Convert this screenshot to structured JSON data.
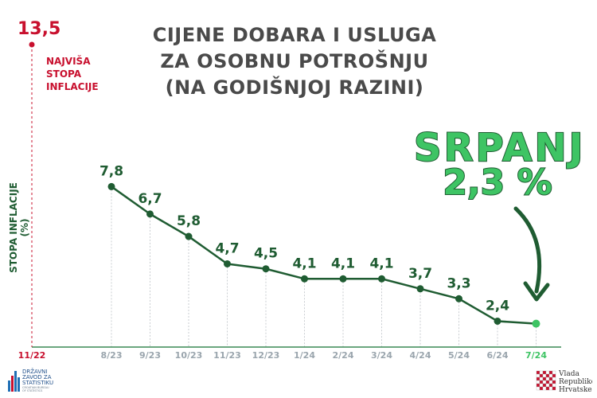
{
  "title": {
    "line1": "CIJENE DOBARA I USLUGA",
    "line2": "ZA OSOBNU POTROŠNJU",
    "line3": "(NA GODIŠNJOJ RAZINI)"
  },
  "peak": {
    "value_label": "13,5",
    "value": 13.5,
    "date_label": "11/22",
    "label_line1": "NAJVIŠA",
    "label_line2": "STOPA",
    "label_line3": "INFLACIJE"
  },
  "highlight": {
    "month": "SRPANJ",
    "value": "2,3 %"
  },
  "logos": {
    "dzs_line1": "DRŽAVNI",
    "dzs_line2": "ZAVOD ZA",
    "dzs_line3": "STATISTIKU",
    "dzs_line4": "CROATIAN BUREAU",
    "dzs_line5": "OF STATISTICS",
    "vlada_line1": "Vlada",
    "vlada_line2": "Republike",
    "vlada_line3": "Hrvatske"
  },
  "colors": {
    "line": "#1f5c32",
    "highlight_point": "#3ec464",
    "peak": "#c8102e",
    "axis": "#3a8a55",
    "tick_text": "#9aa5ad",
    "title": "#4a4a4a"
  },
  "chart_data": {
    "type": "line",
    "x": [
      "8/23",
      "9/23",
      "10/23",
      "11/23",
      "12/23",
      "1/24",
      "2/24",
      "3/24",
      "4/24",
      "5/24",
      "6/24",
      "7/24"
    ],
    "values": [
      7.8,
      6.7,
      5.8,
      4.7,
      4.5,
      4.1,
      4.1,
      4.1,
      3.7,
      3.3,
      2.4,
      2.3
    ],
    "data_labels": [
      "7,8",
      "6,7",
      "5,8",
      "4,7",
      "4,5",
      "4,1",
      "4,1",
      "4,1",
      "3,7",
      "3,3",
      "2,4",
      ""
    ],
    "ylabel": "STOPA INFLACIJE (%)",
    "ylim": [
      2,
      13.5
    ]
  }
}
